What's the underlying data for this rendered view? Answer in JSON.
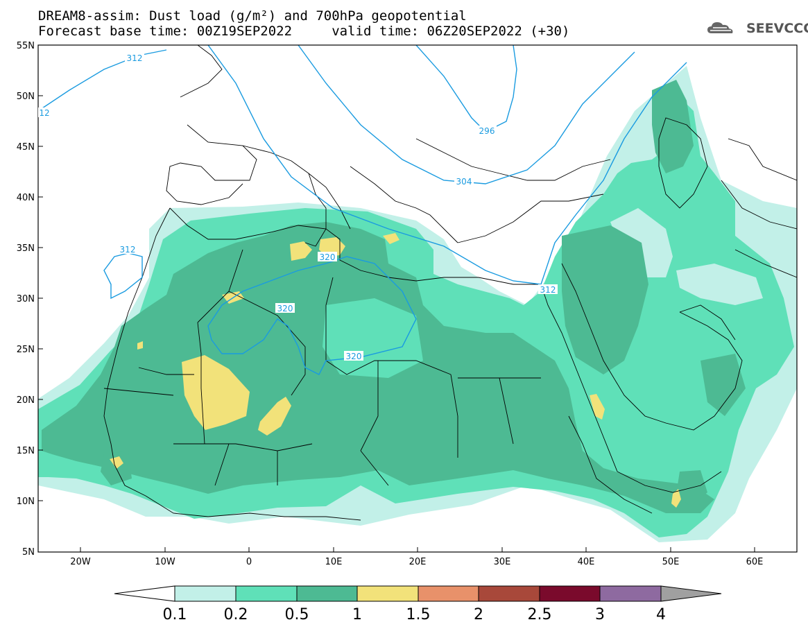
{
  "header": {
    "line1": "DREAM8-assim: Dust load (g/m²) and 700hPa geopotential",
    "line2": "Forecast base time: 00Z19SEP2022     valid time: 06Z20SEP2022 (+30)"
  },
  "logo": {
    "text": "SEEVCCC",
    "icon": "cloud-icon"
  },
  "map": {
    "lat_labels": [
      "55N",
      "50N",
      "45N",
      "40N",
      "35N",
      "30N",
      "25N",
      "20N",
      "15N",
      "10N",
      "5N"
    ],
    "lon_labels": [
      "20W",
      "10W",
      "0",
      "10E",
      "20E",
      "30E",
      "40E",
      "50E",
      "60E"
    ],
    "contour_labels": [
      "312",
      "12",
      "296",
      "304",
      "320",
      "320",
      "320",
      "312",
      "312"
    ]
  },
  "colorbar": {
    "levels": [
      "0.1",
      "0.2",
      "0.5",
      "1",
      "1.5",
      "2",
      "2.5",
      "3",
      "4"
    ],
    "colors": [
      "#c2f0e8",
      "#5fe0b8",
      "#4dba93",
      "#f2e27a",
      "#e8916a",
      "#a8483a",
      "#7a0a2c",
      "#8e6aa0"
    ]
  },
  "colors": {
    "c1": "#c2f0e8",
    "c2": "#5fe0b8",
    "c3": "#4dba93",
    "c4": "#f2e27a",
    "contour": "#1a9be0"
  }
}
